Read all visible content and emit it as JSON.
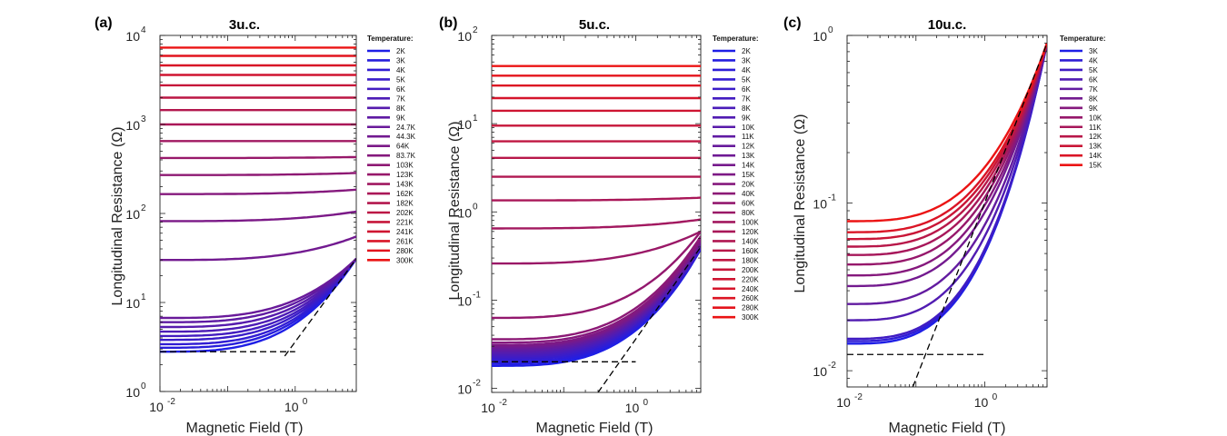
{
  "chart_data": [
    {
      "type": "line",
      "panel": "(a)",
      "title": "3u.c.",
      "xlabel": "Magnetic Field (T)",
      "ylabel": "Longitudinal Resistance (Ω)",
      "xscale": "log",
      "yscale": "log",
      "xlim": [
        0.01,
        8
      ],
      "ylim": [
        1,
        10000
      ],
      "x_ticks": [
        "10",
        "10"
      ],
      "x_tick_exps": [
        "-2",
        "0"
      ],
      "x_tick_values": [
        0.01,
        1
      ],
      "y_ticks": [
        "10",
        "10",
        "10",
        "10",
        "10"
      ],
      "y_tick_exps": [
        "0",
        "1",
        "2",
        "3",
        "4"
      ],
      "y_tick_values": [
        1,
        10,
        100,
        1000,
        10000
      ],
      "legend_title": "Temperature:",
      "series": [
        {
          "name": "2K",
          "r0": 2.8,
          "r_end": 31
        },
        {
          "name": "3K",
          "r0": 3.1,
          "r_end": 31
        },
        {
          "name": "4K",
          "r0": 3.4,
          "r_end": 31
        },
        {
          "name": "5K",
          "r0": 3.8,
          "r_end": 31
        },
        {
          "name": "6K",
          "r0": 4.2,
          "r_end": 31
        },
        {
          "name": "7K",
          "r0": 4.7,
          "r_end": 31
        },
        {
          "name": "8K",
          "r0": 5.3,
          "r_end": 31
        },
        {
          "name": "9K",
          "r0": 6.0,
          "r_end": 31
        },
        {
          "name": "24.7K",
          "r0": 6.7,
          "r_end": 31
        },
        {
          "name": "44.3K",
          "r0": 30,
          "r_end": 55
        },
        {
          "name": "64K",
          "r0": 82,
          "r_end": 105
        },
        {
          "name": "83.7K",
          "r0": 165,
          "r_end": 185
        },
        {
          "name": "103K",
          "r0": 270,
          "r_end": 285
        },
        {
          "name": "123K",
          "r0": 420,
          "r_end": 430
        },
        {
          "name": "143K",
          "r0": 650,
          "r_end": 660
        },
        {
          "name": "162K",
          "r0": 1000,
          "r_end": 1005
        },
        {
          "name": "182K",
          "r0": 1450,
          "r_end": 1450
        },
        {
          "name": "202K",
          "r0": 2000,
          "r_end": 2000
        },
        {
          "name": "221K",
          "r0": 2750,
          "r_end": 2750
        },
        {
          "name": "241K",
          "r0": 3600,
          "r_end": 3600
        },
        {
          "name": "261K",
          "r0": 4600,
          "r_end": 4600
        },
        {
          "name": "280K",
          "r0": 5900,
          "r_end": 5900
        },
        {
          "name": "300K",
          "r0": 7300,
          "r_end": 7300
        }
      ],
      "guides": [
        {
          "x": [
            0.01,
            1.0
          ],
          "y": [
            2.8,
            2.8
          ]
        },
        {
          "x": [
            0.7,
            8.0
          ],
          "y": [
            2.5,
            31
          ]
        }
      ]
    },
    {
      "type": "line",
      "panel": "(b)",
      "title": "5u.c.",
      "xlabel": "Magnetic Field (T)",
      "ylabel": "Longitudinal Resistance (Ω)",
      "xscale": "log",
      "yscale": "log",
      "xlim": [
        0.01,
        8
      ],
      "ylim": [
        0.009,
        100
      ],
      "x_ticks": [
        "10",
        "10"
      ],
      "x_tick_exps": [
        "-2",
        "0"
      ],
      "x_tick_values": [
        0.01,
        1
      ],
      "y_ticks": [
        "10",
        "10",
        "10",
        "10",
        "10"
      ],
      "y_tick_exps": [
        "-2",
        "-1",
        "0",
        "1",
        "2"
      ],
      "y_tick_values": [
        0.01,
        0.1,
        1,
        10,
        100
      ],
      "legend_title": "Temperature:",
      "series": [
        {
          "name": "2K",
          "r0": 0.018,
          "r_end": 0.38
        },
        {
          "name": "3K",
          "r0": 0.019,
          "r_end": 0.38
        },
        {
          "name": "4K",
          "r0": 0.02,
          "r_end": 0.39
        },
        {
          "name": "5K",
          "r0": 0.021,
          "r_end": 0.39
        },
        {
          "name": "6K",
          "r0": 0.022,
          "r_end": 0.4
        },
        {
          "name": "7K",
          "r0": 0.023,
          "r_end": 0.4
        },
        {
          "name": "8K",
          "r0": 0.024,
          "r_end": 0.41
        },
        {
          "name": "9K",
          "r0": 0.025,
          "r_end": 0.42
        },
        {
          "name": "10K",
          "r0": 0.026,
          "r_end": 0.43
        },
        {
          "name": "11K",
          "r0": 0.027,
          "r_end": 0.44
        },
        {
          "name": "12K",
          "r0": 0.028,
          "r_end": 0.45
        },
        {
          "name": "13K",
          "r0": 0.029,
          "r_end": 0.46
        },
        {
          "name": "14K",
          "r0": 0.03,
          "r_end": 0.47
        },
        {
          "name": "15K",
          "r0": 0.031,
          "r_end": 0.48
        },
        {
          "name": "20K",
          "r0": 0.033,
          "r_end": 0.5
        },
        {
          "name": "40K",
          "r0": 0.036,
          "r_end": 0.53
        },
        {
          "name": "60K",
          "r0": 0.063,
          "r_end": 0.6
        },
        {
          "name": "80K",
          "r0": 0.26,
          "r_end": 0.6
        },
        {
          "name": "100K",
          "r0": 0.65,
          "r_end": 0.82
        },
        {
          "name": "120K",
          "r0": 1.35,
          "r_end": 1.45
        },
        {
          "name": "140K",
          "r0": 2.5,
          "r_end": 2.55
        },
        {
          "name": "160K",
          "r0": 4.1,
          "r_end": 4.15
        },
        {
          "name": "180K",
          "r0": 6.3,
          "r_end": 6.3
        },
        {
          "name": "200K",
          "r0": 9.5,
          "r_end": 9.5
        },
        {
          "name": "220K",
          "r0": 14,
          "r_end": 14
        },
        {
          "name": "240K",
          "r0": 19.5,
          "r_end": 19.5
        },
        {
          "name": "260K",
          "r0": 27,
          "r_end": 27
        },
        {
          "name": "280K",
          "r0": 35,
          "r_end": 35
        },
        {
          "name": "300K",
          "r0": 45,
          "r_end": 45
        }
      ],
      "guides": [
        {
          "x": [
            0.01,
            1.0
          ],
          "y": [
            0.02,
            0.02
          ]
        },
        {
          "x": [
            0.3,
            8.0
          ],
          "y": [
            0.009,
            0.4
          ]
        }
      ]
    },
    {
      "type": "line",
      "panel": "(c)",
      "title": "10u.c.",
      "xlabel": "Magnetic Field (T)",
      "ylabel": "Longitudinal Resistance (Ω)",
      "xscale": "log",
      "yscale": "log",
      "xlim": [
        0.01,
        8
      ],
      "ylim": [
        0.008,
        1
      ],
      "x_ticks": [
        "10",
        "10"
      ],
      "x_tick_exps": [
        "-2",
        "0"
      ],
      "x_tick_values": [
        0.01,
        1
      ],
      "y_ticks": [
        "10",
        "10",
        "10"
      ],
      "y_tick_exps": [
        "-2",
        "-1",
        "0"
      ],
      "y_tick_values": [
        0.01,
        0.1,
        1
      ],
      "legend_title": "Temperature:",
      "series": [
        {
          "name": "3K",
          "r0": 0.0145,
          "r_end": 0.9
        },
        {
          "name": "4K",
          "r0": 0.015,
          "r_end": 0.9
        },
        {
          "name": "5K",
          "r0": 0.0155,
          "r_end": 0.9
        },
        {
          "name": "6K",
          "r0": 0.02,
          "r_end": 0.9
        },
        {
          "name": "7K",
          "r0": 0.025,
          "r_end": 0.9
        },
        {
          "name": "8K",
          "r0": 0.032,
          "r_end": 0.9
        },
        {
          "name": "9K",
          "r0": 0.037,
          "r_end": 0.9
        },
        {
          "name": "10K",
          "r0": 0.043,
          "r_end": 0.9
        },
        {
          "name": "11K",
          "r0": 0.049,
          "r_end": 0.9
        },
        {
          "name": "12K",
          "r0": 0.055,
          "r_end": 0.9
        },
        {
          "name": "13K",
          "r0": 0.061,
          "r_end": 0.9
        },
        {
          "name": "14K",
          "r0": 0.067,
          "r_end": 0.9
        },
        {
          "name": "15K",
          "r0": 0.078,
          "r_end": 0.9
        }
      ],
      "guides": [
        {
          "x": [
            0.01,
            1.0
          ],
          "y": [
            0.0125,
            0.0125
          ]
        },
        {
          "x": [
            0.09,
            8.0
          ],
          "y": [
            0.008,
            0.9
          ]
        }
      ]
    }
  ]
}
